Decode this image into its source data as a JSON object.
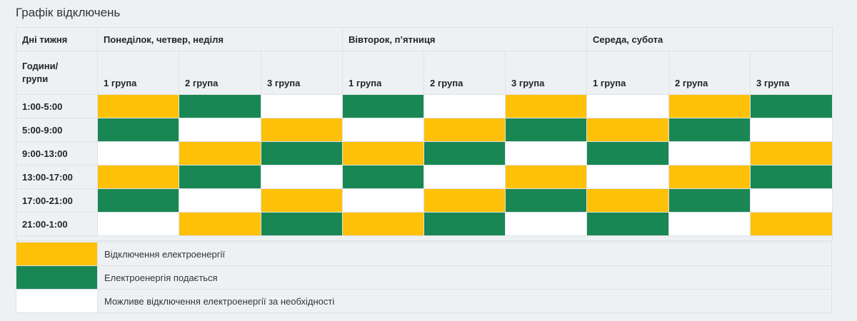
{
  "title": "Графік відключень",
  "header": {
    "days_label": "Дні тижня",
    "hours_groups_label": "Години/\nгрупи",
    "day_groups": [
      "Понеділок, четвер, неділя",
      "Вівторок, п’ятниця",
      "Середа, субота"
    ],
    "group_labels": [
      "1 група",
      "2 група",
      "3 група",
      "1 група",
      "2 група",
      "3 група",
      "1 група",
      "2 група",
      "3 група"
    ]
  },
  "status_colors": {
    "off": "#ffc107",
    "on": "#198754",
    "maybe": "#ffffff"
  },
  "rows": [
    {
      "time": "1:00-5:00",
      "cells": [
        "off",
        "on",
        "maybe",
        "on",
        "maybe",
        "off",
        "maybe",
        "off",
        "on"
      ]
    },
    {
      "time": "5:00-9:00",
      "cells": [
        "on",
        "maybe",
        "off",
        "maybe",
        "off",
        "on",
        "off",
        "on",
        "maybe"
      ]
    },
    {
      "time": "9:00-13:00",
      "cells": [
        "maybe",
        "off",
        "on",
        "off",
        "on",
        "maybe",
        "on",
        "maybe",
        "off"
      ]
    },
    {
      "time": "13:00-17:00",
      "cells": [
        "off",
        "on",
        "maybe",
        "on",
        "maybe",
        "off",
        "maybe",
        "off",
        "on"
      ]
    },
    {
      "time": "17:00-21:00",
      "cells": [
        "on",
        "maybe",
        "off",
        "maybe",
        "off",
        "on",
        "off",
        "on",
        "maybe"
      ]
    },
    {
      "time": "21:00-1:00",
      "cells": [
        "maybe",
        "off",
        "on",
        "off",
        "on",
        "maybe",
        "on",
        "maybe",
        "off"
      ]
    }
  ],
  "legend": [
    {
      "status": "off",
      "label": "Відключення електроенергії"
    },
    {
      "status": "on",
      "label": "Електроенергія подається"
    },
    {
      "status": "maybe",
      "label": "Можливе відключення електроенергії за необхідності"
    }
  ]
}
